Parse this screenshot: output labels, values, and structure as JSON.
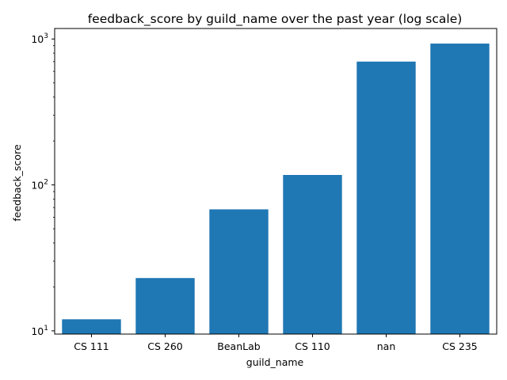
{
  "chart_data": {
    "type": "bar",
    "title": "feedback_score by guild_name over the past year (log scale)",
    "xlabel": "guild_name",
    "ylabel": "feedback_score",
    "yscale": "log",
    "ylim": [
      9.5,
      1180
    ],
    "y_ticks": [
      {
        "value": 10,
        "base": "10",
        "exp": "1"
      },
      {
        "value": 100,
        "base": "10",
        "exp": "2"
      },
      {
        "value": 1000,
        "base": "10",
        "exp": "3"
      }
    ],
    "categories": [
      "CS 111",
      "CS 260",
      "BeanLab",
      "CS 110",
      "nan",
      "CS 235"
    ],
    "values": [
      12,
      23,
      68,
      117,
      700,
      930
    ],
    "bar_color": "#1f77b4",
    "grid": false,
    "legend": "none"
  }
}
